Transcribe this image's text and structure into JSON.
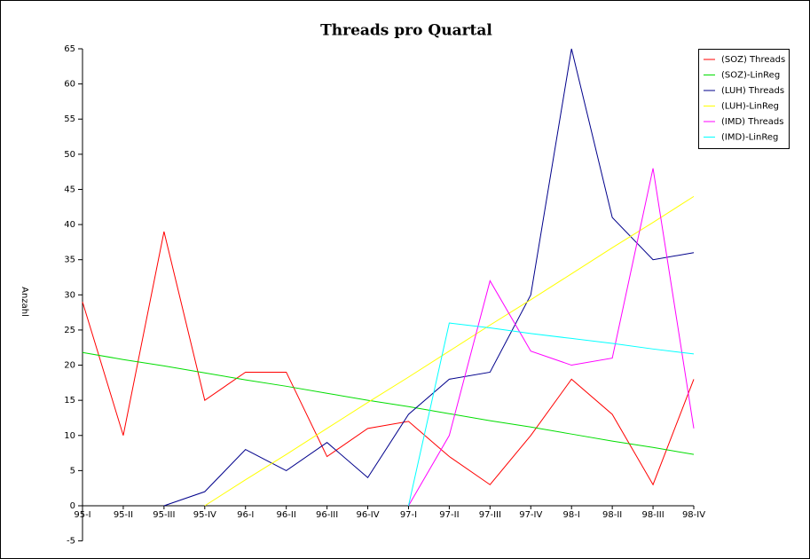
{
  "chart_data": {
    "type": "line",
    "title": "Threads pro Quartal",
    "y_label": "Anzahl",
    "categories": [
      "95-I",
      "95-II",
      "95-III",
      "95-IV",
      "96-I",
      "96-II",
      "96-III",
      "96-IV",
      "97-I",
      "97-II",
      "97-III",
      "97-IV",
      "98-I",
      "98-II",
      "98-III",
      "98-IV"
    ],
    "series": [
      {
        "name": "(SOZ) Threads",
        "color": "#ff0000",
        "values": [
          29,
          10,
          39,
          15,
          19,
          19,
          7,
          11,
          12,
          7,
          3,
          10,
          18,
          13,
          3,
          18
        ]
      },
      {
        "name": "(SOZ)-LinReg",
        "color": "#00dd00",
        "values": [
          21.8,
          20.8,
          19.9,
          18.9,
          17.9,
          17.0,
          16.0,
          15.0,
          14.1,
          13.1,
          12.1,
          11.2,
          10.2,
          9.2,
          8.3,
          7.3
        ]
      },
      {
        "name": "(LUH) Threads",
        "color": "#00008b",
        "values": [
          null,
          null,
          0,
          2,
          8,
          5,
          9,
          4,
          13,
          18,
          19,
          30,
          65,
          41,
          35,
          36
        ]
      },
      {
        "name": "(LUH)-LinReg",
        "color": "#ffff00",
        "values": [
          null,
          null,
          null,
          0,
          3.7,
          7.3,
          11,
          14.7,
          18.3,
          22,
          25.7,
          29.3,
          33,
          36.7,
          40.3,
          44
        ]
      },
      {
        "name": "(IMD) Threads",
        "color": "#ff00ff",
        "values": [
          null,
          null,
          null,
          null,
          null,
          null,
          null,
          null,
          0,
          10,
          32,
          22,
          20,
          21,
          48,
          11
        ]
      },
      {
        "name": "(IMD)-LinReg",
        "color": "#00ffff",
        "values": [
          null,
          null,
          null,
          null,
          null,
          null,
          null,
          null,
          0,
          26,
          25.3,
          24.5,
          23.8,
          23.1,
          22.3,
          21.6
        ]
      }
    ],
    "ylim": [
      -5,
      65
    ],
    "yticks": [
      -5,
      0,
      5,
      10,
      15,
      20,
      25,
      30,
      35,
      40,
      45,
      50,
      55,
      60,
      65
    ],
    "grid": false,
    "legend": "top-right"
  }
}
